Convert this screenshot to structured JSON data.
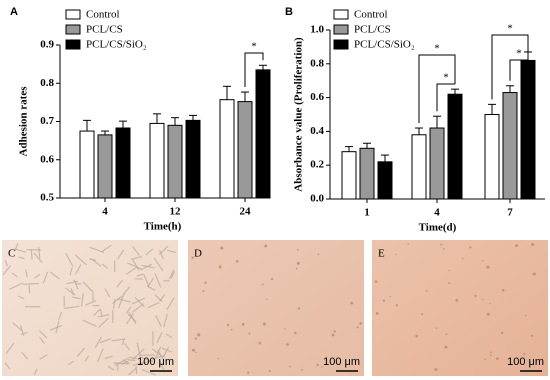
{
  "chart_data": [
    {
      "type": "bar",
      "panel": "A",
      "xlabel": "Time(h)",
      "ylabel": "Adhesion rates",
      "categories": [
        "4",
        "12",
        "24"
      ],
      "series": [
        {
          "name": "Control",
          "color": "#ffffff",
          "values": [
            0.675,
            0.695,
            0.757
          ],
          "errors": [
            0.028,
            0.025,
            0.035
          ]
        },
        {
          "name": "PCL/CS",
          "color": "#999999",
          "values": [
            0.665,
            0.69,
            0.752
          ],
          "errors": [
            0.01,
            0.02,
            0.025
          ]
        },
        {
          "name": "PCL/CS/SiO₂",
          "color": "#000000",
          "values": [
            0.683,
            0.703,
            0.835
          ],
          "errors": [
            0.018,
            0.013,
            0.012
          ]
        }
      ],
      "ylim": [
        0.5,
        0.9
      ],
      "yticks": [
        0.5,
        0.6,
        0.7,
        0.8,
        0.9
      ],
      "annotations": [
        "*"
      ]
    },
    {
      "type": "bar",
      "panel": "B",
      "xlabel": "Time(d)",
      "ylabel": "Absorbance value (Proliferation)",
      "categories": [
        "1",
        "4",
        "7"
      ],
      "series": [
        {
          "name": "Control",
          "color": "#ffffff",
          "values": [
            0.28,
            0.38,
            0.5
          ],
          "errors": [
            0.03,
            0.04,
            0.06
          ]
        },
        {
          "name": "PCL/CS",
          "color": "#999999",
          "values": [
            0.3,
            0.42,
            0.63
          ],
          "errors": [
            0.03,
            0.07,
            0.04
          ]
        },
        {
          "name": "PCL/CS/SiO₂",
          "color": "#000000",
          "values": [
            0.22,
            0.62,
            0.82
          ],
          "errors": [
            0.04,
            0.03,
            0.05
          ]
        }
      ],
      "ylim": [
        0,
        1
      ],
      "yticks": [
        {
          "value": 0,
          "label": "0.0"
        },
        0.2,
        0.4,
        0.6,
        0.8,
        {
          "value": 1,
          "label": "1.0"
        }
      ],
      "annotations": [
        "*",
        "*",
        "*",
        "*"
      ]
    }
  ],
  "images": [
    {
      "label": "C",
      "scale_bar": "100 μm"
    },
    {
      "label": "D",
      "scale_bar": "100 μm"
    },
    {
      "label": "E",
      "scale_bar": "100 μm"
    }
  ]
}
